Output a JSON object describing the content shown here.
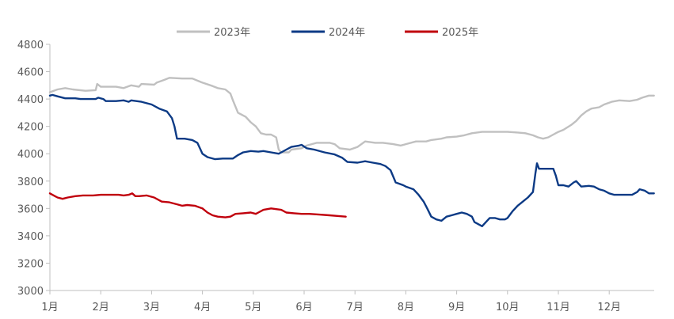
{
  "chart_data": {
    "type": "line",
    "title": "",
    "xlabel": "",
    "ylabel": "",
    "ylim": [
      3000,
      4800
    ],
    "yticks": [
      "4800",
      "4600",
      "4400",
      "4200",
      "4000",
      "3800",
      "3600",
      "3400",
      "3200",
      "3000"
    ],
    "xticks": [
      "1月",
      "2月",
      "3月",
      "4月",
      "5月",
      "6月",
      "7月",
      "8月",
      "9月",
      "10月",
      "11月",
      "12月"
    ],
    "grid": false,
    "legend_position": "top-center",
    "series": [
      {
        "name": "2023年",
        "color": "#c0c0c0",
        "points": [
          [
            0.0,
            4450
          ],
          [
            0.15,
            4470
          ],
          [
            0.3,
            4480
          ],
          [
            0.45,
            4470
          ],
          [
            0.7,
            4460
          ],
          [
            0.9,
            4465
          ],
          [
            0.93,
            4510
          ],
          [
            1.0,
            4490
          ],
          [
            1.3,
            4490
          ],
          [
            1.45,
            4480
          ],
          [
            1.6,
            4500
          ],
          [
            1.75,
            4490
          ],
          [
            1.8,
            4510
          ],
          [
            2.05,
            4505
          ],
          [
            2.1,
            4520
          ],
          [
            2.25,
            4540
          ],
          [
            2.35,
            4555
          ],
          [
            2.6,
            4550
          ],
          [
            2.8,
            4550
          ],
          [
            3.0,
            4520
          ],
          [
            3.2,
            4495
          ],
          [
            3.3,
            4480
          ],
          [
            3.45,
            4470
          ],
          [
            3.55,
            4440
          ],
          [
            3.6,
            4390
          ],
          [
            3.7,
            4300
          ],
          [
            3.85,
            4270
          ],
          [
            3.95,
            4230
          ],
          [
            4.05,
            4200
          ],
          [
            4.15,
            4150
          ],
          [
            4.25,
            4140
          ],
          [
            4.35,
            4140
          ],
          [
            4.45,
            4120
          ],
          [
            4.5,
            4030
          ],
          [
            4.55,
            4010
          ],
          [
            4.7,
            4010
          ],
          [
            4.75,
            4030
          ],
          [
            4.95,
            4040
          ],
          [
            5.05,
            4060
          ],
          [
            5.25,
            4080
          ],
          [
            5.5,
            4080
          ],
          [
            5.6,
            4070
          ],
          [
            5.7,
            4040
          ],
          [
            5.9,
            4030
          ],
          [
            6.05,
            4050
          ],
          [
            6.2,
            4090
          ],
          [
            6.4,
            4080
          ],
          [
            6.55,
            4080
          ],
          [
            6.75,
            4070
          ],
          [
            6.9,
            4060
          ],
          [
            7.0,
            4070
          ],
          [
            7.2,
            4090
          ],
          [
            7.4,
            4090
          ],
          [
            7.5,
            4100
          ],
          [
            7.7,
            4110
          ],
          [
            7.8,
            4120
          ],
          [
            8.0,
            4125
          ],
          [
            8.15,
            4135
          ],
          [
            8.3,
            4150
          ],
          [
            8.5,
            4160
          ],
          [
            8.7,
            4160
          ],
          [
            9.0,
            4160
          ],
          [
            9.2,
            4155
          ],
          [
            9.35,
            4150
          ],
          [
            9.5,
            4135
          ],
          [
            9.6,
            4120
          ],
          [
            9.7,
            4110
          ],
          [
            9.8,
            4120
          ],
          [
            9.9,
            4140
          ],
          [
            10.0,
            4160
          ],
          [
            10.1,
            4175
          ],
          [
            10.25,
            4210
          ],
          [
            10.35,
            4240
          ],
          [
            10.45,
            4280
          ],
          [
            10.55,
            4310
          ],
          [
            10.65,
            4330
          ],
          [
            10.8,
            4340
          ],
          [
            10.9,
            4360
          ],
          [
            11.05,
            4380
          ],
          [
            11.2,
            4390
          ],
          [
            11.4,
            4385
          ],
          [
            11.55,
            4395
          ],
          [
            11.65,
            4410
          ],
          [
            11.78,
            4425
          ],
          [
            11.88,
            4425
          ]
        ]
      },
      {
        "name": "2024年",
        "color": "#0c3a85",
        "points": [
          [
            0.0,
            4425
          ],
          [
            0.05,
            4430
          ],
          [
            0.15,
            4420
          ],
          [
            0.3,
            4405
          ],
          [
            0.5,
            4405
          ],
          [
            0.6,
            4400
          ],
          [
            0.9,
            4400
          ],
          [
            0.95,
            4410
          ],
          [
            1.05,
            4400
          ],
          [
            1.1,
            4385
          ],
          [
            1.3,
            4385
          ],
          [
            1.45,
            4390
          ],
          [
            1.55,
            4380
          ],
          [
            1.6,
            4390
          ],
          [
            1.8,
            4380
          ],
          [
            2.0,
            4360
          ],
          [
            2.15,
            4330
          ],
          [
            2.3,
            4310
          ],
          [
            2.4,
            4260
          ],
          [
            2.45,
            4200
          ],
          [
            2.5,
            4110
          ],
          [
            2.65,
            4110
          ],
          [
            2.8,
            4100
          ],
          [
            2.9,
            4080
          ],
          [
            2.95,
            4040
          ],
          [
            3.0,
            4000
          ],
          [
            3.1,
            3975
          ],
          [
            3.25,
            3960
          ],
          [
            3.4,
            3965
          ],
          [
            3.6,
            3965
          ],
          [
            3.7,
            3990
          ],
          [
            3.8,
            4010
          ],
          [
            3.95,
            4020
          ],
          [
            4.1,
            4015
          ],
          [
            4.2,
            4020
          ],
          [
            4.35,
            4010
          ],
          [
            4.5,
            4000
          ],
          [
            4.55,
            4010
          ],
          [
            4.65,
            4030
          ],
          [
            4.75,
            4050
          ],
          [
            4.9,
            4060
          ],
          [
            4.95,
            4065
          ],
          [
            5.05,
            4040
          ],
          [
            5.2,
            4030
          ],
          [
            5.4,
            4010
          ],
          [
            5.6,
            3995
          ],
          [
            5.75,
            3970
          ],
          [
            5.85,
            3940
          ],
          [
            6.05,
            3935
          ],
          [
            6.2,
            3945
          ],
          [
            6.35,
            3935
          ],
          [
            6.5,
            3925
          ],
          [
            6.6,
            3910
          ],
          [
            6.7,
            3880
          ],
          [
            6.8,
            3790
          ],
          [
            6.95,
            3770
          ],
          [
            7.0,
            3760
          ],
          [
            7.15,
            3740
          ],
          [
            7.25,
            3700
          ],
          [
            7.35,
            3650
          ],
          [
            7.42,
            3600
          ],
          [
            7.5,
            3540
          ],
          [
            7.6,
            3520
          ],
          [
            7.7,
            3510
          ],
          [
            7.8,
            3540
          ],
          [
            7.9,
            3550
          ],
          [
            8.0,
            3560
          ],
          [
            8.1,
            3570
          ],
          [
            8.2,
            3560
          ],
          [
            8.3,
            3540
          ],
          [
            8.35,
            3500
          ],
          [
            8.45,
            3480
          ],
          [
            8.5,
            3470
          ],
          [
            8.55,
            3490
          ],
          [
            8.65,
            3530
          ],
          [
            8.75,
            3530
          ],
          [
            8.85,
            3520
          ],
          [
            8.95,
            3520
          ],
          [
            9.0,
            3530
          ],
          [
            9.1,
            3580
          ],
          [
            9.2,
            3620
          ],
          [
            9.3,
            3650
          ],
          [
            9.4,
            3680
          ],
          [
            9.5,
            3720
          ],
          [
            9.55,
            3860
          ],
          [
            9.58,
            3930
          ],
          [
            9.62,
            3890
          ],
          [
            9.75,
            3890
          ],
          [
            9.9,
            3890
          ],
          [
            9.95,
            3840
          ],
          [
            10.0,
            3770
          ],
          [
            10.1,
            3770
          ],
          [
            10.2,
            3760
          ],
          [
            10.3,
            3790
          ],
          [
            10.35,
            3800
          ],
          [
            10.45,
            3760
          ],
          [
            10.6,
            3765
          ],
          [
            10.7,
            3760
          ],
          [
            10.8,
            3740
          ],
          [
            10.9,
            3730
          ],
          [
            11.0,
            3710
          ],
          [
            11.1,
            3700
          ],
          [
            11.3,
            3700
          ],
          [
            11.45,
            3700
          ],
          [
            11.55,
            3720
          ],
          [
            11.6,
            3740
          ],
          [
            11.7,
            3730
          ],
          [
            11.78,
            3710
          ],
          [
            11.88,
            3710
          ]
        ]
      },
      {
        "name": "2025年",
        "color": "#c0000c",
        "points": [
          [
            0.0,
            3710
          ],
          [
            0.1,
            3690
          ],
          [
            0.15,
            3680
          ],
          [
            0.25,
            3670
          ],
          [
            0.35,
            3680
          ],
          [
            0.5,
            3690
          ],
          [
            0.65,
            3695
          ],
          [
            0.85,
            3695
          ],
          [
            1.0,
            3700
          ],
          [
            1.2,
            3700
          ],
          [
            1.35,
            3700
          ],
          [
            1.45,
            3695
          ],
          [
            1.55,
            3700
          ],
          [
            1.62,
            3710
          ],
          [
            1.68,
            3690
          ],
          [
            1.75,
            3690
          ],
          [
            1.9,
            3695
          ],
          [
            2.05,
            3680
          ],
          [
            2.2,
            3650
          ],
          [
            2.35,
            3645
          ],
          [
            2.5,
            3630
          ],
          [
            2.6,
            3620
          ],
          [
            2.7,
            3625
          ],
          [
            2.85,
            3620
          ],
          [
            3.0,
            3600
          ],
          [
            3.1,
            3570
          ],
          [
            3.2,
            3550
          ],
          [
            3.3,
            3540
          ],
          [
            3.45,
            3535
          ],
          [
            3.55,
            3540
          ],
          [
            3.65,
            3560
          ],
          [
            3.8,
            3565
          ],
          [
            3.95,
            3570
          ],
          [
            4.05,
            3560
          ],
          [
            4.1,
            3570
          ],
          [
            4.2,
            3590
          ],
          [
            4.35,
            3600
          ],
          [
            4.45,
            3595
          ],
          [
            4.55,
            3590
          ],
          [
            4.65,
            3570
          ],
          [
            4.8,
            3565
          ],
          [
            4.95,
            3560
          ],
          [
            5.1,
            3560
          ],
          [
            5.3,
            3555
          ],
          [
            5.5,
            3550
          ],
          [
            5.65,
            3545
          ],
          [
            5.82,
            3540
          ]
        ]
      }
    ]
  }
}
